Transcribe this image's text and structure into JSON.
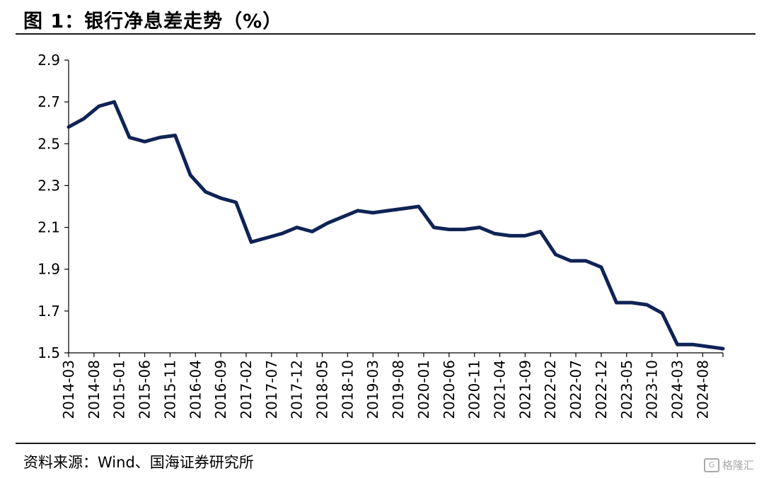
{
  "title": "图 1：银行净息差走势（%）",
  "source": "资料来源：Wind、国海证券研究所",
  "watermark": {
    "logo": "G",
    "text": "格隆汇"
  },
  "chart_data": {
    "type": "line",
    "title": "银行净息差走势（%）",
    "ylim": [
      1.5,
      2.9
    ],
    "yticks": [
      1.5,
      1.7,
      1.9,
      2.1,
      2.3,
      2.5,
      2.7,
      2.9
    ],
    "ytick_labels": [
      "1.5",
      "1.7",
      "1.9",
      "2.1",
      "2.3",
      "2.5",
      "2.7",
      "2.9"
    ],
    "xtick_labels": [
      "2014-03",
      "2014-08",
      "2015-01",
      "2015-06",
      "2015-11",
      "2016-04",
      "2016-09",
      "2017-02",
      "2017-07",
      "2017-12",
      "2018-05",
      "2018-10",
      "2019-03",
      "2019-08",
      "2020-01",
      "2020-06",
      "2020-11",
      "2021-04",
      "2021-09",
      "2022-02",
      "2022-07",
      "2022-12",
      "2023-05",
      "2023-10",
      "2024-03",
      "2024-08"
    ],
    "grid": false,
    "line_color": "#0f2356",
    "series": [
      {
        "x": [
          "2014-03",
          "2014-06",
          "2014-09",
          "2014-12",
          "2015-03",
          "2015-06",
          "2015-09",
          "2015-12",
          "2016-03",
          "2016-06",
          "2016-09",
          "2016-12",
          "2017-03",
          "2017-06",
          "2017-09",
          "2017-12",
          "2018-03",
          "2018-06",
          "2018-09",
          "2018-12",
          "2019-03",
          "2019-06",
          "2019-09",
          "2019-12",
          "2020-03",
          "2020-06",
          "2020-09",
          "2020-12",
          "2021-03",
          "2021-06",
          "2021-09",
          "2021-12",
          "2022-03",
          "2022-06",
          "2022-09",
          "2022-12",
          "2023-03",
          "2023-06",
          "2023-09",
          "2023-12",
          "2024-03",
          "2024-06",
          "2024-09",
          "2024-12"
        ],
        "values": [
          2.58,
          2.62,
          2.68,
          2.7,
          2.53,
          2.51,
          2.53,
          2.54,
          2.35,
          2.27,
          2.24,
          2.22,
          2.03,
          2.05,
          2.07,
          2.1,
          2.08,
          2.12,
          2.15,
          2.18,
          2.17,
          2.18,
          2.19,
          2.2,
          2.1,
          2.09,
          2.09,
          2.1,
          2.07,
          2.06,
          2.06,
          2.08,
          1.97,
          1.94,
          1.94,
          1.91,
          1.74,
          1.74,
          1.73,
          1.69,
          1.54,
          1.54,
          1.53,
          1.52
        ]
      }
    ]
  }
}
